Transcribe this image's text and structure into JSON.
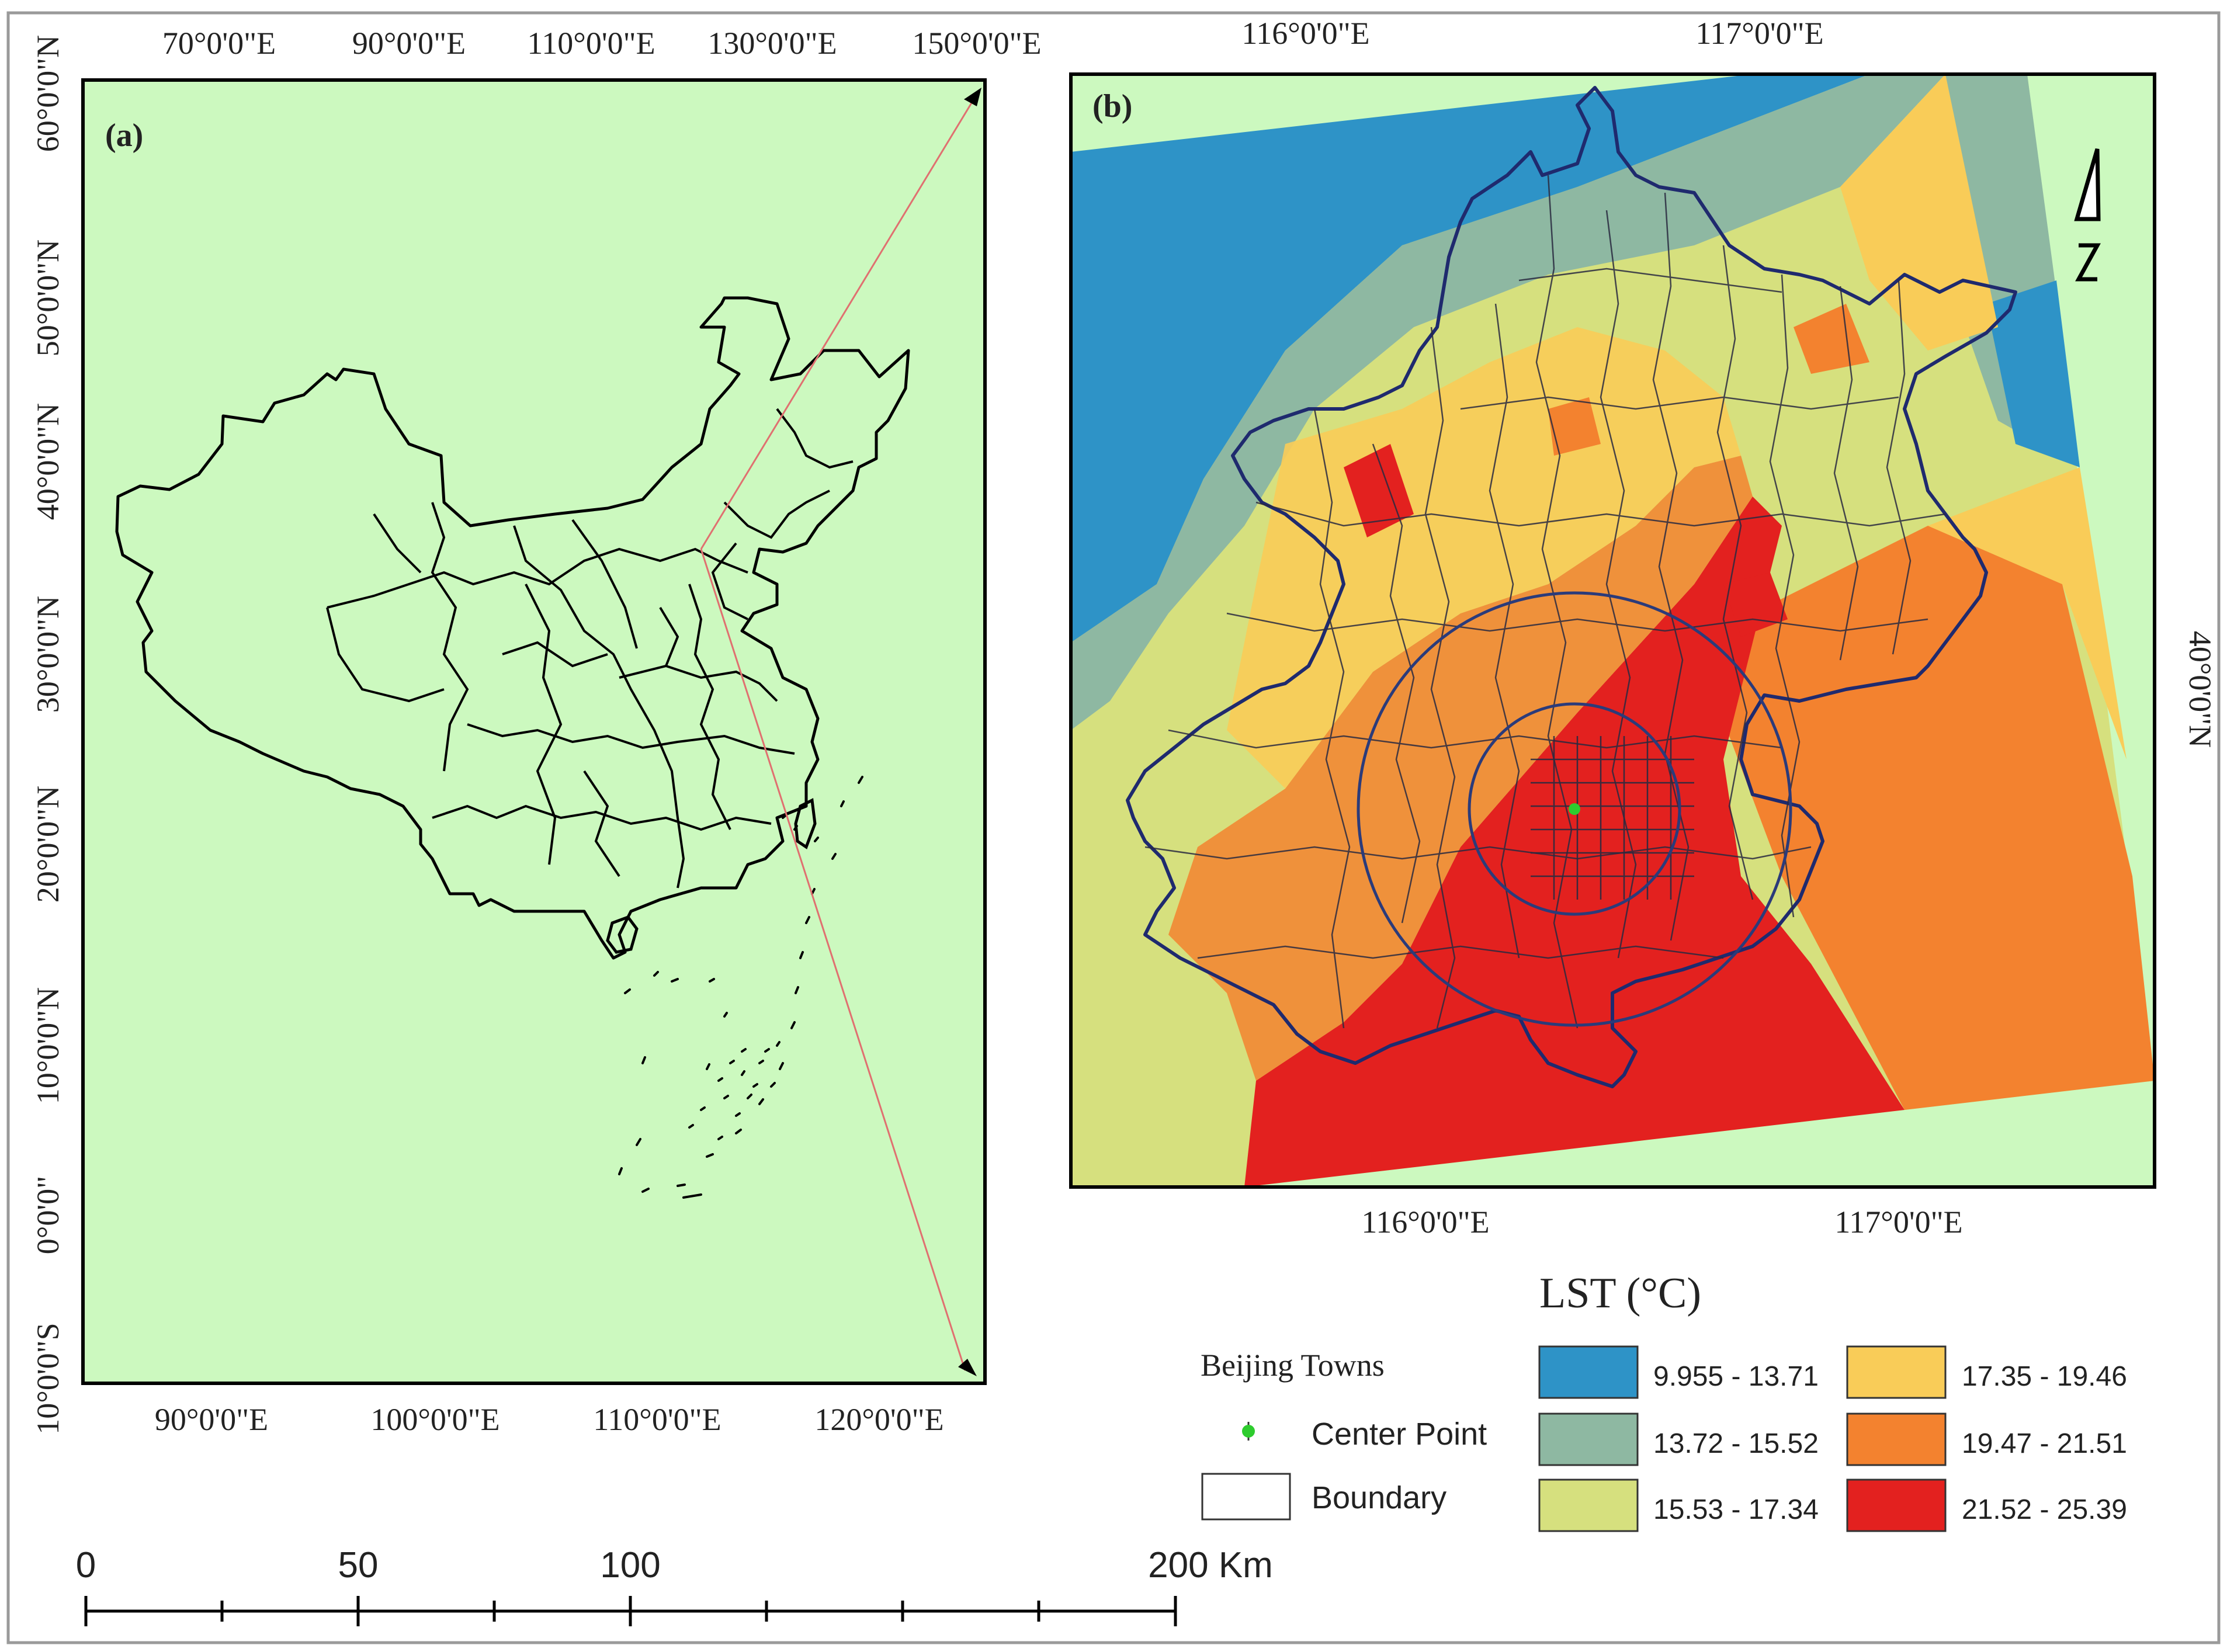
{
  "panel_a": {
    "label": "(a)",
    "top_ticks": [
      "70°0'0\"E",
      "90°0'0\"E",
      "110°0'0\"E",
      "130°0'0\"E",
      "150°0'0\"E"
    ],
    "bottom_ticks": [
      "90°0'0\"E",
      "100°0'0\"E",
      "110°0'0\"E",
      "120°0'0\"E"
    ],
    "left_ticks": [
      "60°0'0\"N",
      "50°0'0\"N",
      "40°0'0\"N",
      "30°0'0\"N",
      "20°0'0\"N",
      "10°0'0\"N",
      "0°0'0\"",
      "10°0'0\"S"
    ],
    "background_color": "#ccf9bf"
  },
  "panel_b": {
    "label": "(b)",
    "top_ticks": [
      "116°0'0\"E",
      "117°0'0\"E"
    ],
    "bottom_ticks": [
      "116°0'0\"E",
      "117°0'0\"E"
    ],
    "right_ticks": [
      "40°0'0\"N"
    ],
    "north_arrow": "north-arrow-icon"
  },
  "legend": {
    "title": "LST (°C)",
    "towns_title": "Beijing Towns",
    "center_point_label": "Center Point",
    "boundary_label": "Boundary",
    "classes": [
      {
        "range": "9.955 - 13.71",
        "color": "#2e93c7"
      },
      {
        "range": "13.72 - 15.52",
        "color": "#8eb8a2"
      },
      {
        "range": "15.53 - 17.34",
        "color": "#d6e07e"
      },
      {
        "range": "17.35 - 19.46",
        "color": "#f9cc58"
      },
      {
        "range": "19.47 - 21.51",
        "color": "#f3822f"
      },
      {
        "range": "21.52 - 25.39",
        "color": "#e3211f"
      }
    ],
    "center_point_color": "#2ecc2e"
  },
  "scale_bar": {
    "labels": [
      "0",
      "50",
      "100",
      "200 Km"
    ]
  }
}
